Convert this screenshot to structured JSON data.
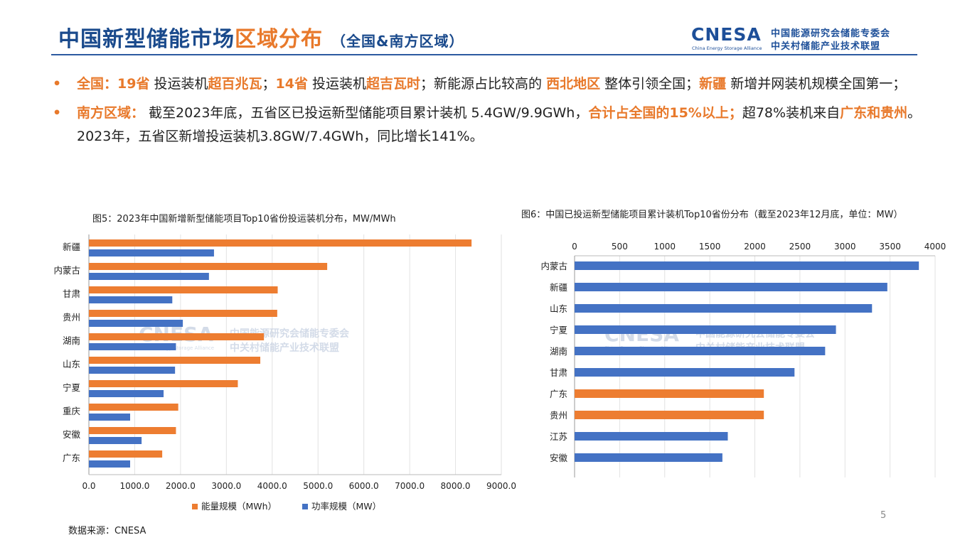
{
  "header": {
    "title_part1": "中国新型储能市场",
    "title_part2": "区域分布",
    "title_sub": "（全国&南方区域）"
  },
  "logo": {
    "word": "CNESA",
    "tagline": "China Energy Storage Alliance",
    "cn_line1": "中国能源研究会储能专委会",
    "cn_line2": "中关村储能产业技术联盟"
  },
  "bullets": {
    "b1": {
      "s1": "全国：19省",
      "s2": " 投运装机",
      "s3": "超百兆瓦",
      "s4": "；",
      "s5": "14省",
      "s6": " 投运装机",
      "s7": "超吉瓦时",
      "s8": "；新能源占比较高的 ",
      "s9": "西北地区",
      "s10": " 整体引领全国；",
      "s11": "新疆",
      "s12": " 新增并网装机规模全国第一；"
    },
    "b2": {
      "s1": "南方区域：",
      "s2": " 截至2023年底，五省区已投运新型储能项目累计装机 5.4GW/9.9GWh，",
      "s3": "合计占全国的15%以上；",
      "s4": "超78%装机来自",
      "s5": "广东和贵州",
      "s6": "。2023年，五省区新增投运装机3.8GW/7.4GWh，同比增长141%。"
    }
  },
  "watermark": {
    "word": "CNESA",
    "cn_line1": "中国能源研究会储能专委会",
    "cn_line2": "中关村储能产业技术联盟",
    "tagline": "China Energy Storage Alliance"
  },
  "chart_data": [
    {
      "type": "bar",
      "orientation": "horizontal",
      "title": "图5：2023年中国新增新型储能项目Top10省份投运装机分布，MW/MWh",
      "categories": [
        "新疆",
        "内蒙古",
        "甘肃",
        "贵州",
        "湖南",
        "山东",
        "宁夏",
        "重庆",
        "安徽",
        "广东"
      ],
      "series": [
        {
          "name": "能量规模（MWh）",
          "color": "#ed7d31",
          "values": [
            8350,
            5200,
            4120,
            4110,
            3820,
            3740,
            3250,
            1950,
            1900,
            1600
          ]
        },
        {
          "name": "功率规模（MW）",
          "color": "#4472c4",
          "values": [
            2730,
            2620,
            1820,
            2050,
            1900,
            1880,
            1630,
            900,
            1150,
            900
          ]
        }
      ],
      "xlim": [
        0,
        9000
      ],
      "xticks": [
        "0.0",
        "1000.0",
        "2000.0",
        "3000.0",
        "4000.0",
        "5000.0",
        "6000.0",
        "7000.0",
        "8000.0",
        "9000.0"
      ],
      "legend": "bottom",
      "grid": true,
      "source": "数据来源：CNESA"
    },
    {
      "type": "bar",
      "orientation": "horizontal",
      "title": "图6：中国已投运新型储能项目累计装机Top10省份分布（截至2023年12月底，单位：MW）",
      "categories": [
        "内蒙古",
        "新疆",
        "山东",
        "宁夏",
        "湖南",
        "甘肃",
        "广东",
        "贵州",
        "江苏",
        "安徽"
      ],
      "values": [
        3820,
        3470,
        3300,
        2900,
        2780,
        2440,
        2100,
        2100,
        1700,
        1640
      ],
      "colors": [
        "#4472c4",
        "#4472c4",
        "#4472c4",
        "#4472c4",
        "#4472c4",
        "#4472c4",
        "#ed7d31",
        "#ed7d31",
        "#4472c4",
        "#4472c4"
      ],
      "xlim": [
        0,
        4000
      ],
      "xticks": [
        "0",
        "500",
        "1000",
        "1500",
        "2000",
        "2500",
        "3000",
        "3500",
        "4000"
      ],
      "xaxis_position": "top",
      "grid": true
    }
  ],
  "page_number": "5"
}
